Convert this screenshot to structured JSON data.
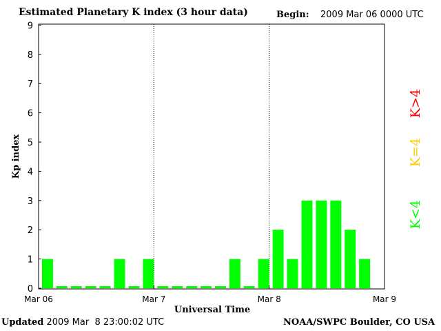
{
  "header": {
    "title": "Estimated Planetary K index (3 hour data)",
    "begin_label": "Begin:",
    "begin_value": "2009 Mar 06 0000 UTC"
  },
  "footer": {
    "updated_label": "Updated",
    "updated_value": "2009 Mar  8 23:00:02 UTC",
    "credit": "NOAA/SWPC Boulder, CO USA"
  },
  "chart_data": {
    "type": "bar",
    "title": "Estimated Planetary K index (3 hour data)",
    "xlabel": "Universal Time",
    "ylabel": "Kp index",
    "ylim": [
      0,
      9
    ],
    "yticks": [
      "0",
      "1",
      "2",
      "3",
      "4",
      "5",
      "6",
      "7",
      "8",
      "9"
    ],
    "xticks": [
      "Mar 06",
      "Mar 7",
      "Mar 8",
      "Mar 9"
    ],
    "day_dividers": true,
    "bar_color": "#00ff00",
    "values": [
      1,
      0,
      0,
      0,
      0,
      1,
      0,
      1,
      0,
      0,
      0,
      0,
      0,
      1,
      0,
      1,
      2,
      1,
      3,
      3,
      3,
      2,
      1
    ],
    "legend": [
      {
        "label": "K<4",
        "color": "#00ff00"
      },
      {
        "label": "K=4",
        "color": "#ffcc00"
      },
      {
        "label": "K>4",
        "color": "#ff0000"
      }
    ]
  }
}
